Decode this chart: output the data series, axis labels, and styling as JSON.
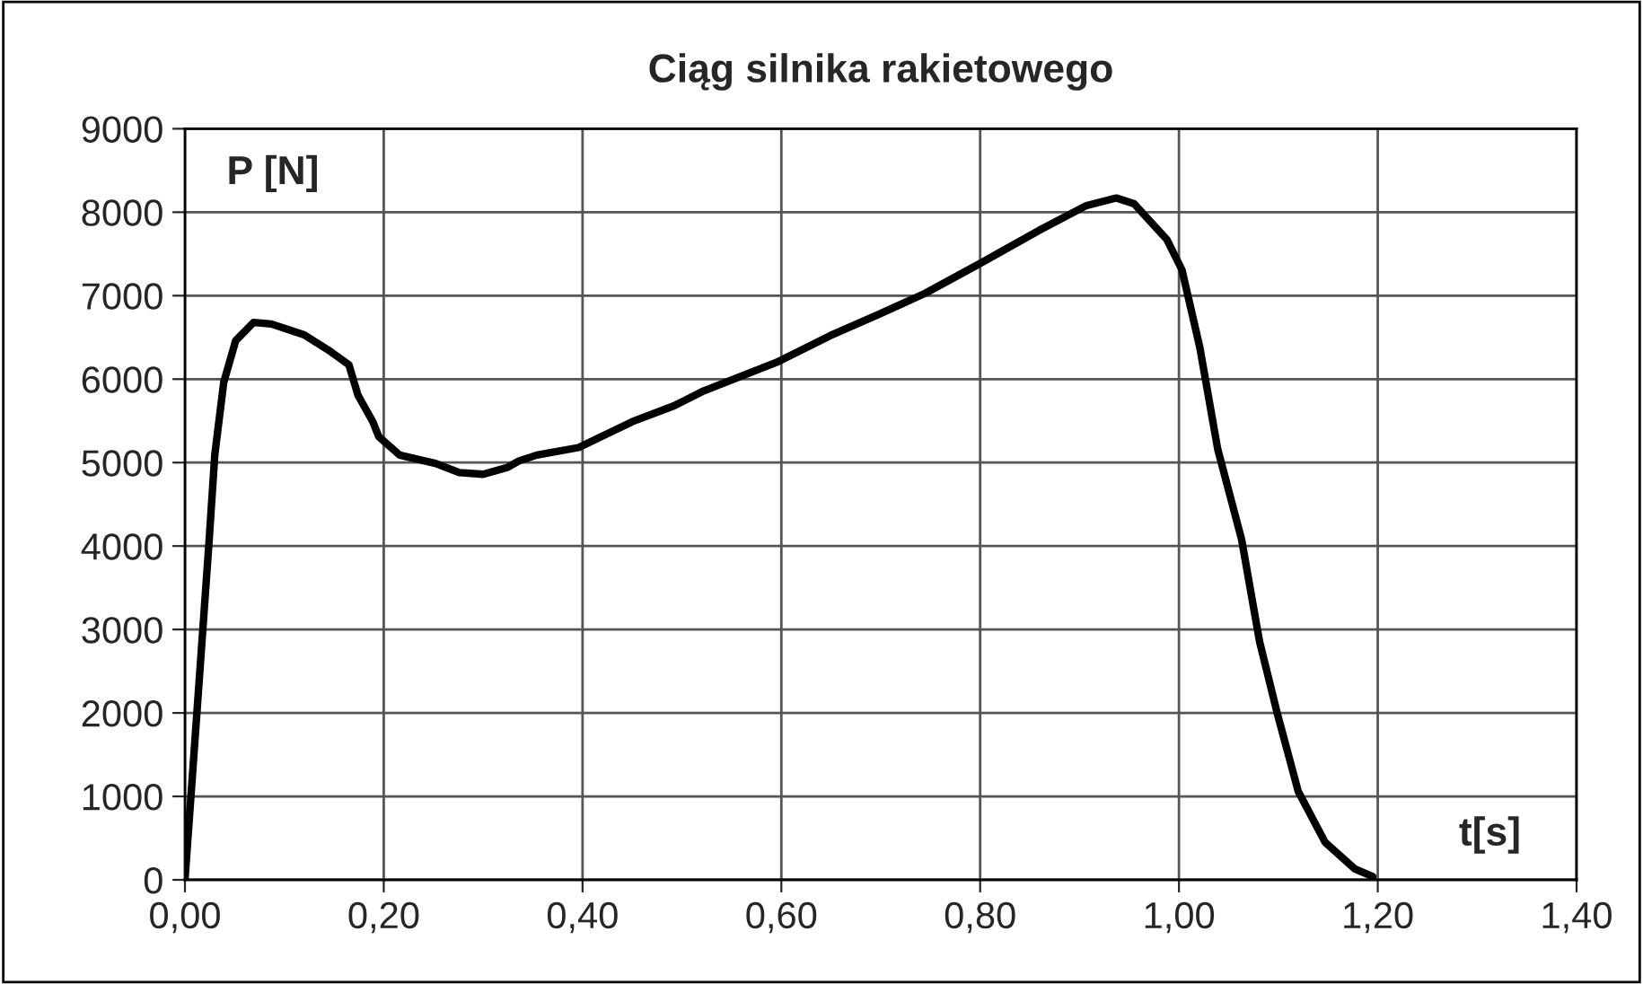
{
  "chart_data": {
    "type": "line",
    "title": "Ciąg silnika rakietowego",
    "xlabel": "t[s]",
    "ylabel": "P [N]",
    "x": [
      0,
      0.012,
      0.024,
      0.03,
      0.039,
      0.051,
      0.069,
      0.087,
      0.12,
      0.144,
      0.165,
      0.174,
      0.189,
      0.195,
      0.216,
      0.252,
      0.276,
      0.3,
      0.324,
      0.336,
      0.354,
      0.396,
      0.45,
      0.492,
      0.522,
      0.595,
      0.649,
      0.697,
      0.745,
      0.799,
      0.859,
      0.907,
      0.937,
      0.955,
      0.988,
      1.003,
      1.021,
      1.039,
      1.063,
      1.081,
      1.099,
      1.12,
      1.147,
      1.177,
      1.195
    ],
    "series": [
      {
        "color": "#000000",
        "values": [
          0,
          2000,
          4010,
          5090,
          5960,
          6460,
          6680,
          6660,
          6530,
          6350,
          6170,
          5810,
          5490,
          5310,
          5090,
          4990,
          4880,
          4860,
          4940,
          5020,
          5090,
          5180,
          5490,
          5680,
          5860,
          6200,
          6520,
          6770,
          7030,
          7380,
          7780,
          8080,
          8170,
          8100,
          7670,
          7310,
          6380,
          5160,
          4080,
          2860,
          1990,
          1060,
          450,
          130,
          40
        ]
      }
    ],
    "xlim": [
      0,
      1.4
    ],
    "ylim": [
      0,
      9000
    ],
    "xticks": [
      {
        "value": 0,
        "label": "0,00"
      },
      {
        "value": 0.2,
        "label": "0,20"
      },
      {
        "value": 0.4,
        "label": "0,40"
      },
      {
        "value": 0.6,
        "label": "0,60"
      },
      {
        "value": 0.8,
        "label": "0,80"
      },
      {
        "value": 1.0,
        "label": "1,00"
      },
      {
        "value": 1.2,
        "label": "1,20"
      },
      {
        "value": 1.4,
        "label": "1,40"
      }
    ],
    "yticks": [
      0,
      1000,
      2000,
      3000,
      4000,
      5000,
      6000,
      7000,
      8000,
      9000
    ],
    "grid": true,
    "marker": "none",
    "line_style": "solid"
  }
}
